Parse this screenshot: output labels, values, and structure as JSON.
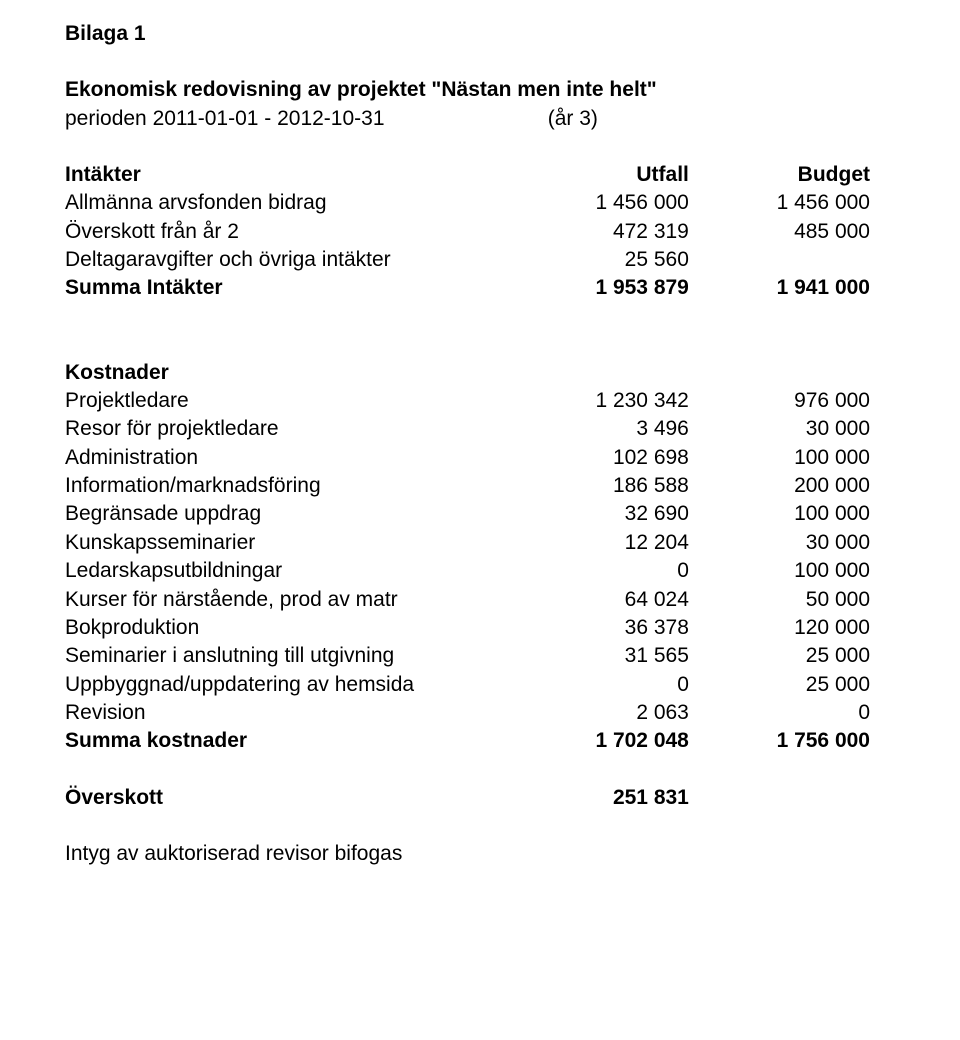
{
  "header": {
    "doc_label": "Bilaga 1",
    "title": "Ekonomisk redovisning av projektet \"Nästan men inte helt\"",
    "period_text": "perioden 2011-01-01 - 2012-10-31",
    "period_suffix": "(år 3)"
  },
  "sections": {
    "intakter": {
      "heading": "Intäkter",
      "col_utfall": "Utfall",
      "col_budget": "Budget",
      "rows": [
        {
          "label": "Allmänna arvsfonden bidrag",
          "v1": "1 456 000",
          "v2": "1 456 000"
        },
        {
          "label": "Överskott från  år 2",
          "v1": "472 319",
          "v2": "485 000"
        },
        {
          "label": "Deltagaravgifter och övriga intäkter",
          "v1": "25 560",
          "v2": ""
        }
      ],
      "sum": {
        "label": "Summa Intäkter",
        "v1": "1 953 879",
        "v2": "1 941 000"
      }
    },
    "kostnader": {
      "heading": "Kostnader",
      "rows": [
        {
          "label": "Projektledare",
          "v1": "1 230 342",
          "v2": "976 000"
        },
        {
          "label": "Resor för projektledare",
          "v1": "3 496",
          "v2": "30 000"
        },
        {
          "label": "Administration",
          "v1": "102 698",
          "v2": "100 000"
        },
        {
          "label": "Information/marknadsföring",
          "v1": "186 588",
          "v2": "200 000"
        },
        {
          "label": "Begränsade uppdrag",
          "v1": "32 690",
          "v2": "100 000"
        },
        {
          "label": "Kunskapsseminarier",
          "v1": "12 204",
          "v2": "30 000"
        },
        {
          "label": "Ledarskapsutbildningar",
          "v1": "0",
          "v2": "100 000"
        },
        {
          "label": "Kurser för närstående, prod av matr",
          "v1": "64 024",
          "v2": "50 000"
        },
        {
          "label": "Bokproduktion",
          "v1": "36 378",
          "v2": "120 000"
        },
        {
          "label": "Seminarier i anslutning till utgivning",
          "v1": "31 565",
          "v2": "25 000"
        },
        {
          "label": "Uppbyggnad/uppdatering av hemsida",
          "v1": "0",
          "v2": "25 000"
        },
        {
          "label": "Revision",
          "v1": "2 063",
          "v2": "0"
        }
      ],
      "sum": {
        "label": "Summa kostnader",
        "v1": "1 702 048",
        "v2": "1 756 000"
      }
    },
    "overskott": {
      "label": "Överskott",
      "v1": "251 831"
    },
    "footnote": "Intyg av auktoriserad revisor bifogas"
  }
}
